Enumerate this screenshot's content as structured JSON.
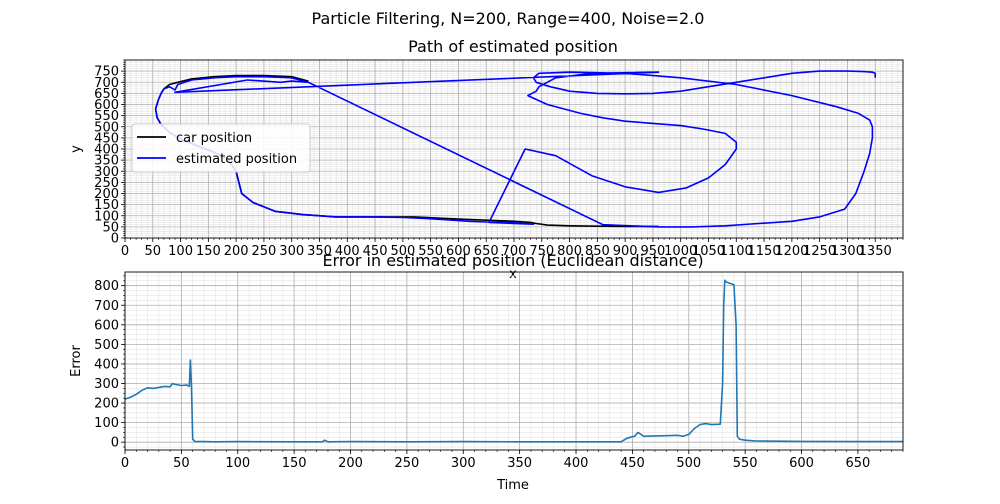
{
  "figure": {
    "suptitle": "Particle Filtering, N=200, Range=400, Noise=2.0"
  },
  "colors": {
    "car": "#000000",
    "estimate": "#0000ff",
    "error": "#1f77b4"
  },
  "chart_data": [
    {
      "type": "line",
      "title": "Path of estimated position",
      "xlabel": "x",
      "ylabel": "y",
      "xlim": [
        0,
        1400
      ],
      "ylim": [
        0,
        800
      ],
      "xticks": [
        0,
        50,
        100,
        150,
        200,
        250,
        300,
        350,
        400,
        450,
        500,
        550,
        600,
        650,
        700,
        750,
        800,
        850,
        900,
        950,
        1000,
        1050,
        1100,
        1150,
        1200,
        1250,
        1300,
        1350
      ],
      "yticks": [
        0,
        50,
        100,
        150,
        200,
        250,
        300,
        350,
        400,
        450,
        500,
        550,
        600,
        650,
        700,
        750
      ],
      "grid": true,
      "legend_position": "center-left",
      "series": [
        {
          "name": "car position",
          "color": "#000000",
          "x": [
            330,
            300,
            250,
            200,
            160,
            120,
            95,
            80,
            70,
            65,
            60,
            55,
            58,
            65,
            80,
            100,
            130,
            160,
            185,
            200,
            210,
            230,
            270,
            320,
            380,
            450,
            520,
            600,
            650,
            700,
            730,
            740,
            760,
            800,
            850,
            900,
            950,
            960
          ],
          "y": [
            705,
            725,
            730,
            730,
            725,
            715,
            700,
            690,
            670,
            650,
            620,
            580,
            540,
            510,
            475,
            445,
            415,
            385,
            355,
            300,
            200,
            160,
            120,
            105,
            95,
            95,
            95,
            85,
            80,
            75,
            70,
            65,
            58,
            55,
            53,
            52,
            52,
            52
          ]
        },
        {
          "name": "estimated position",
          "color": "#0000ff",
          "x": [
            330,
            300,
            250,
            200,
            160,
            120,
            95,
            90,
            80,
            70,
            65,
            60,
            55,
            58,
            65,
            80,
            100,
            130,
            160,
            185,
            200,
            210,
            230,
            270,
            320,
            380,
            450,
            500,
            540,
            580,
            620,
            650,
            690,
            735,
            655,
            720,
            775,
            840,
            900,
            960,
            1010,
            1050,
            1080,
            1100,
            1100,
            1080,
            1040,
            1000,
            950,
            900,
            860,
            820,
            760,
            725,
            740,
            745,
            775,
            840,
            960,
            90,
            220,
            280,
            300,
            330,
            860,
            960,
            1020,
            1080,
            1140,
            1200,
            1250,
            1295,
            1315,
            1330,
            1340,
            1345,
            1345,
            1340,
            1320,
            1280,
            1200,
            1100,
            1000,
            900,
            800,
            745,
            735,
            740,
            765,
            800,
            850,
            900,
            950,
            1000,
            1050,
            1100,
            1150,
            1200,
            1250,
            1300,
            1330,
            1345,
            1350,
            1350
          ],
          "y": [
            700,
            720,
            725,
            725,
            720,
            710,
            690,
            665,
            680,
            670,
            650,
            620,
            580,
            540,
            510,
            475,
            445,
            415,
            385,
            355,
            300,
            200,
            160,
            120,
            105,
            95,
            95,
            92,
            88,
            82,
            75,
            72,
            70,
            62,
            70,
            400,
            370,
            280,
            230,
            205,
            225,
            270,
            330,
            400,
            430,
            470,
            490,
            505,
            515,
            525,
            540,
            560,
            600,
            640,
            660,
            680,
            720,
            740,
            745,
            655,
            710,
            700,
            705,
            700,
            60,
            50,
            50,
            55,
            65,
            75,
            95,
            130,
            200,
            300,
            380,
            450,
            500,
            530,
            560,
            590,
            640,
            690,
            720,
            740,
            745,
            740,
            720,
            700,
            680,
            660,
            650,
            648,
            650,
            660,
            680,
            700,
            720,
            740,
            750,
            750,
            748,
            745,
            740,
            720
          ]
        }
      ]
    },
    {
      "type": "line",
      "title": "Error in estimated position (Euclidean distance)",
      "xlabel": "Time",
      "ylabel": "Error",
      "xlim": [
        0,
        690
      ],
      "ylim": [
        -40,
        870
      ],
      "xticks": [
        0,
        50,
        100,
        150,
        200,
        250,
        300,
        350,
        400,
        450,
        500,
        550,
        600,
        650
      ],
      "yticks": [
        0,
        100,
        200,
        300,
        400,
        500,
        600,
        700,
        800
      ],
      "grid": true,
      "series": [
        {
          "name": "",
          "color": "#1f77b4",
          "x": [
            0,
            5,
            10,
            15,
            20,
            25,
            30,
            35,
            40,
            42,
            45,
            50,
            55,
            57,
            58,
            59,
            60,
            62,
            70,
            80,
            100,
            150,
            175,
            177,
            180,
            200,
            250,
            300,
            350,
            400,
            440,
            445,
            450,
            452,
            455,
            460,
            470,
            480,
            490,
            495,
            500,
            505,
            510,
            515,
            520,
            528,
            530,
            531,
            532,
            533,
            535,
            540,
            542,
            543,
            545,
            550,
            560,
            580,
            600,
            650,
            690
          ],
          "y": [
            220,
            230,
            245,
            265,
            278,
            275,
            280,
            285,
            283,
            300,
            295,
            290,
            292,
            285,
            420,
            280,
            15,
            3,
            3,
            2,
            3,
            2,
            2,
            10,
            2,
            3,
            2,
            3,
            2,
            2,
            2,
            20,
            28,
            30,
            50,
            30,
            32,
            33,
            35,
            30,
            40,
            70,
            90,
            95,
            90,
            92,
            300,
            700,
            828,
            820,
            815,
            805,
            600,
            30,
            15,
            10,
            6,
            5,
            4,
            3,
            3
          ]
        }
      ]
    }
  ]
}
